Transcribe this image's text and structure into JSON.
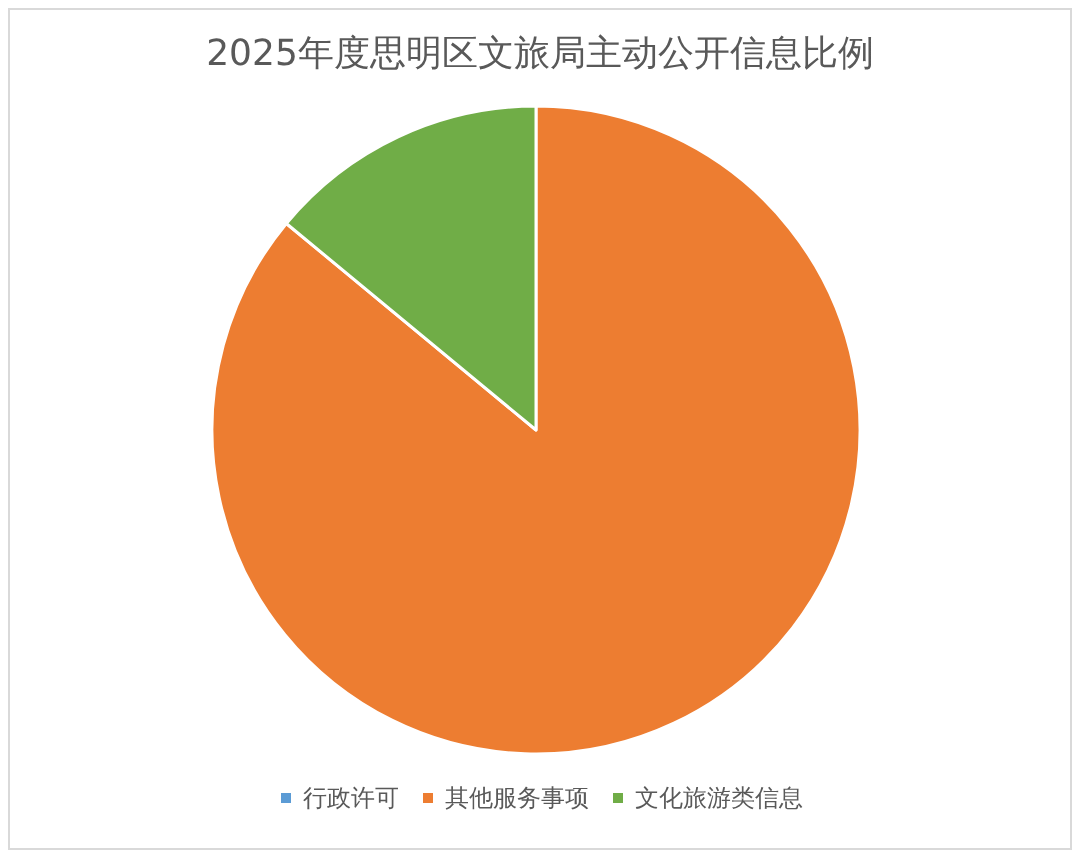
{
  "chart_data": {
    "type": "pie",
    "title": "2025年度思明区文旅局主动公开信息比例",
    "categories": [
      "行政许可",
      "其他服务事项",
      "文化旅游类信息"
    ],
    "values": [
      0,
      86,
      14
    ],
    "colors": [
      "#5b9bd5",
      "#ed7d31",
      "#70ad47"
    ],
    "legend": "bottom"
  }
}
